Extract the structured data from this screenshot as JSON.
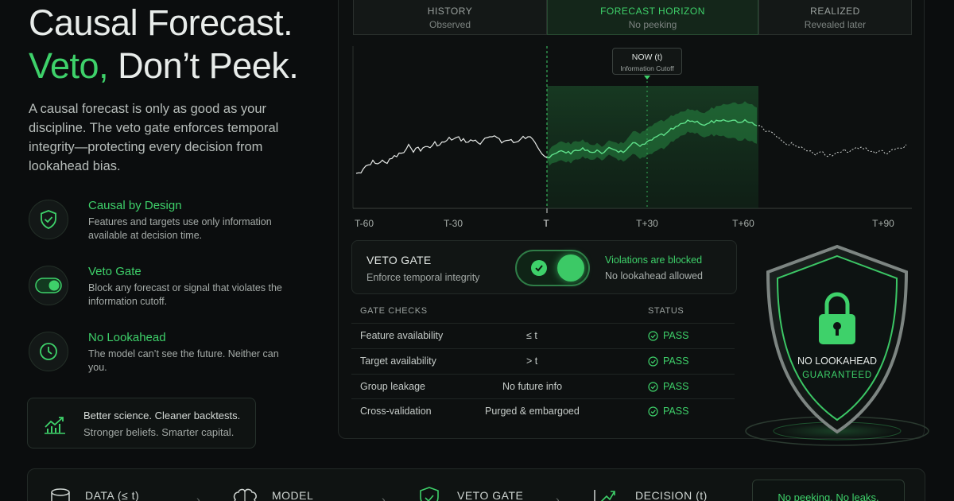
{
  "hero": {
    "title_line1": "Causal Forecast.",
    "title_line2_accent": "Veto,",
    "title_line2_rest": " Don’t Peek.",
    "intro": "A causal forecast is only as good as your discipline. The veto gate enforces temporal integrity—protecting every decision from lookahead bias."
  },
  "features": [
    {
      "icon": "shield-check-icon",
      "title": "Causal by Design",
      "desc": "Features and targets use only information available at decision time."
    },
    {
      "icon": "toggle-icon",
      "title": "Veto Gate",
      "desc": "Block any forecast or signal that violates the information cutoff."
    },
    {
      "icon": "clock-icon",
      "title": "No Lookahead",
      "desc": "The model can’t see the future. Neither can you."
    }
  ],
  "callout": {
    "icon": "growth-chart-icon",
    "line1": "Better science. Cleaner backtests.",
    "line2": "Stronger beliefs. Smarter capital."
  },
  "timeline": {
    "zones": [
      {
        "title": "HISTORY",
        "sub": "Observed"
      },
      {
        "title": "FORECAST HORIZON",
        "sub": "No peeking"
      },
      {
        "title": "REALIZED",
        "sub": "Revealed later"
      }
    ],
    "now_title": "NOW (t)",
    "now_sub": "Information Cutoff",
    "ticks": [
      "T-60",
      "T-30",
      "T",
      "T+30",
      "T+60",
      "T+90"
    ]
  },
  "veto_gate": {
    "title": "VETO GATE",
    "sub": "Enforce temporal integrity",
    "toggle_on": true,
    "status1": "Violations are blocked",
    "status2": "No lookahead allowed"
  },
  "gate_checks": {
    "header_check": "GATE CHECKS",
    "header_status": "STATUS",
    "rows": [
      {
        "name": "Feature availability",
        "rule": "≤ t",
        "status": "PASS"
      },
      {
        "name": "Target availability",
        "rule": "> t",
        "status": "PASS"
      },
      {
        "name": "Group leakage",
        "rule": "No future info",
        "status": "PASS"
      },
      {
        "name": "Cross-validation",
        "rule": "Purged & embargoed",
        "status": "PASS"
      }
    ]
  },
  "shield": {
    "line1": "NO LOOKAHEAD",
    "line2": "GUARANTEED",
    "icon": "padlock-icon"
  },
  "pipeline": {
    "steps": [
      {
        "icon": "database-icon",
        "label": "DATA (≤ t)"
      },
      {
        "icon": "brain-icon",
        "label": "MODEL"
      },
      {
        "icon": "shield-icon",
        "label": "VETO GATE"
      },
      {
        "icon": "trend-arrow-icon",
        "label": "DECISION (t)"
      }
    ],
    "badge": "No peeking. No leaks."
  },
  "colors": {
    "accent": "#3ed16a",
    "background": "#0b0d0e",
    "panel": "#0d1010"
  }
}
